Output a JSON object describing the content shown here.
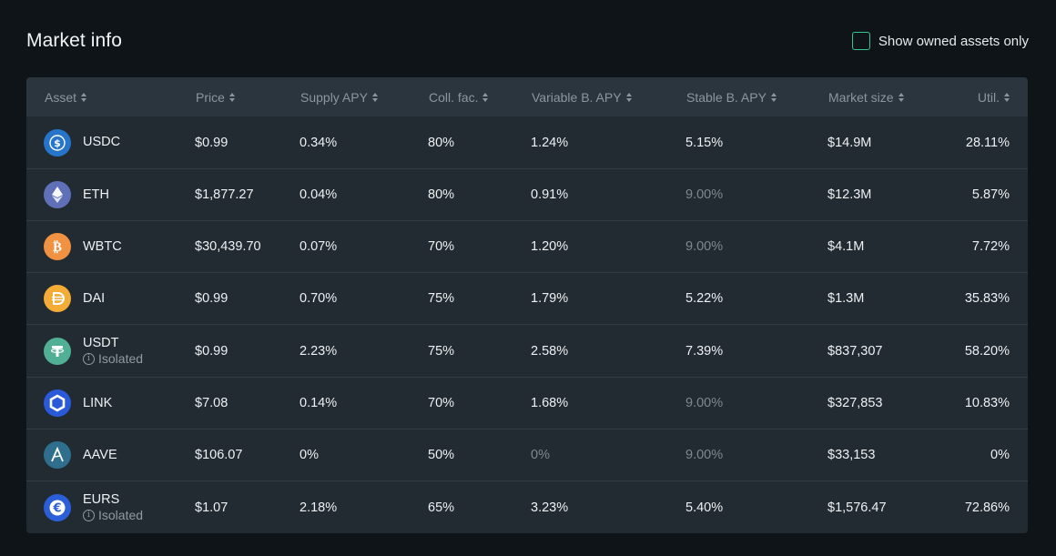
{
  "header": {
    "title": "Market info",
    "owned_toggle_label": "Show owned assets only"
  },
  "table": {
    "columns": [
      {
        "key": "asset",
        "label": "Asset"
      },
      {
        "key": "price",
        "label": "Price"
      },
      {
        "key": "supply_apy",
        "label": "Supply APY"
      },
      {
        "key": "coll_fac",
        "label": "Coll. fac."
      },
      {
        "key": "variable_apy",
        "label": "Variable B. APY"
      },
      {
        "key": "stable_apy",
        "label": "Stable B. APY"
      },
      {
        "key": "market_size",
        "label": "Market size"
      },
      {
        "key": "util",
        "label": "Util."
      }
    ],
    "isolated_label": "Isolated",
    "rows": [
      {
        "symbol": "USDC",
        "icon": "usdc-icon",
        "color": "#2775ca",
        "isolated": false,
        "price": "$0.99",
        "supply_apy": "0.34%",
        "coll_fac": "80%",
        "variable_apy": "1.24%",
        "variable_muted": false,
        "stable_apy": "5.15%",
        "stable_muted": false,
        "market_size": "$14.9M",
        "util": "28.11%"
      },
      {
        "symbol": "ETH",
        "icon": "eth-icon",
        "color": "#5f6fb8",
        "isolated": false,
        "price": "$1,877.27",
        "supply_apy": "0.04%",
        "coll_fac": "80%",
        "variable_apy": "0.91%",
        "variable_muted": false,
        "stable_apy": "9.00%",
        "stable_muted": true,
        "market_size": "$12.3M",
        "util": "5.87%"
      },
      {
        "symbol": "WBTC",
        "icon": "wbtc-icon",
        "color": "#f09242",
        "isolated": false,
        "price": "$30,439.70",
        "supply_apy": "0.07%",
        "coll_fac": "70%",
        "variable_apy": "1.20%",
        "variable_muted": false,
        "stable_apy": "9.00%",
        "stable_muted": true,
        "market_size": "$4.1M",
        "util": "7.72%"
      },
      {
        "symbol": "DAI",
        "icon": "dai-icon",
        "color": "#f5ac37",
        "isolated": false,
        "price": "$0.99",
        "supply_apy": "0.70%",
        "coll_fac": "75%",
        "variable_apy": "1.79%",
        "variable_muted": false,
        "stable_apy": "5.22%",
        "stable_muted": false,
        "market_size": "$1.3M",
        "util": "35.83%"
      },
      {
        "symbol": "USDT",
        "icon": "usdt-icon",
        "color": "#50af95",
        "isolated": true,
        "price": "$0.99",
        "supply_apy": "2.23%",
        "coll_fac": "75%",
        "variable_apy": "2.58%",
        "variable_muted": false,
        "stable_apy": "7.39%",
        "stable_muted": false,
        "market_size": "$837,307",
        "util": "58.20%"
      },
      {
        "symbol": "LINK",
        "icon": "link-icon",
        "color": "#2a5ada",
        "isolated": false,
        "price": "$7.08",
        "supply_apy": "0.14%",
        "coll_fac": "70%",
        "variable_apy": "1.68%",
        "variable_muted": false,
        "stable_apy": "9.00%",
        "stable_muted": true,
        "market_size": "$327,853",
        "util": "10.83%"
      },
      {
        "symbol": "AAVE",
        "icon": "aave-icon",
        "color": "#2f6f8d",
        "isolated": false,
        "price": "$106.07",
        "supply_apy": "0%",
        "coll_fac": "50%",
        "variable_apy": "0%",
        "variable_muted": true,
        "stable_apy": "9.00%",
        "stable_muted": true,
        "market_size": "$33,153",
        "util": "0%"
      },
      {
        "symbol": "EURS",
        "icon": "eurs-icon",
        "color": "#2b5fd9",
        "isolated": true,
        "price": "$1.07",
        "supply_apy": "2.18%",
        "coll_fac": "65%",
        "variable_apy": "3.23%",
        "variable_muted": false,
        "stable_apy": "5.40%",
        "stable_muted": false,
        "market_size": "$1,576.47",
        "util": "72.86%"
      }
    ]
  }
}
